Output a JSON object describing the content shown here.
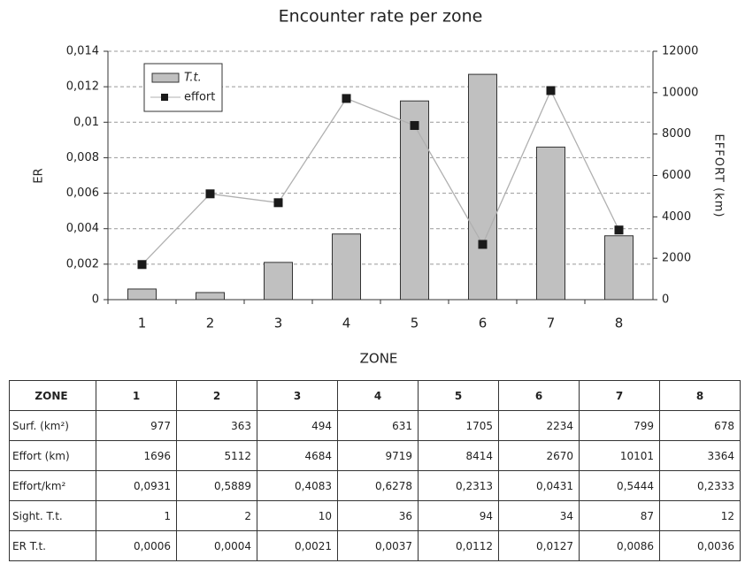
{
  "chart_data": {
    "type": "bar",
    "title": "Encounter rate per zone",
    "xlabel": "ZONE",
    "ylabel": "ER",
    "y2label": "EFFORT (km)",
    "categories": [
      "1",
      "2",
      "3",
      "4",
      "5",
      "6",
      "7",
      "8"
    ],
    "series": [
      {
        "name": "T.t.",
        "type": "bar",
        "color": "#c0c0c0",
        "values": [
          0.0006,
          0.0004,
          0.0021,
          0.0037,
          0.0112,
          0.0127,
          0.0086,
          0.0036
        ]
      },
      {
        "name": "effort",
        "type": "line",
        "axis": "y2",
        "color": "#b0b0b0",
        "marker_color": "#1a1a1a",
        "values": [
          1696,
          5112,
          4684,
          9719,
          8414,
          2670,
          10101,
          3364
        ]
      }
    ],
    "ylim": [
      0,
      0.014
    ],
    "yticks": [
      0,
      {
        "value": 0.002,
        "label": "0,002"
      },
      {
        "value": 0.004,
        "label": "0,004"
      },
      {
        "value": 0.006,
        "label": "0,006"
      },
      {
        "value": 0.008,
        "label": "0,008"
      },
      {
        "value": 0.01,
        "label": "0,01"
      },
      {
        "value": 0.012,
        "label": "0,012"
      },
      {
        "value": 0.014,
        "label": "0,014"
      }
    ],
    "y2lim": [
      0,
      12000
    ],
    "y2ticks": [
      0,
      2000,
      4000,
      6000,
      8000,
      10000,
      12000
    ],
    "grid": true,
    "legend": "upper left"
  },
  "table": {
    "header": [
      "ZONE",
      "1",
      "2",
      "3",
      "4",
      "5",
      "6",
      "7",
      "8"
    ],
    "rows": [
      [
        "Surf. (km²)",
        977,
        363,
        494,
        631,
        1705,
        2234,
        799,
        678
      ],
      [
        "Effort (km)",
        1696,
        5112,
        4684,
        9719,
        8414,
        2670,
        10101,
        3364
      ],
      [
        "Effort/km²",
        "0,0931",
        "0,5889",
        "0,4083",
        "0,6278",
        "0,2313",
        "0,0431",
        "0,5444",
        "0,2333"
      ],
      [
        "Sight. T.t.",
        1,
        2,
        10,
        36,
        94,
        34,
        87,
        12
      ],
      [
        "ER T.t.",
        "0,0006",
        "0,0004",
        "0,0021",
        "0,0037",
        "0,0112",
        "0,0127",
        "0,0086",
        "0,0036"
      ]
    ]
  }
}
